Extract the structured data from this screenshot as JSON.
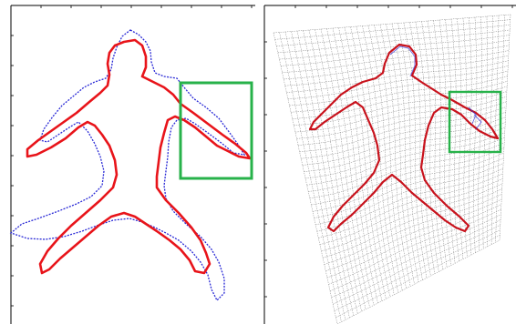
{
  "figure": {
    "panels": [
      {
        "name": "before-registration",
        "shapes": [
          "target-contour",
          "source-contour-dotted"
        ],
        "highlight_box": true
      },
      {
        "name": "after-registration",
        "shapes": [
          "deformation-grid",
          "target-contour",
          "warped-source-contour"
        ],
        "highlight_box": true
      }
    ]
  },
  "colors": {
    "target_contour": "#e8141a",
    "source_contour": "#2a2ad6",
    "highlight_box": "#27b24a",
    "grid": "#7a7a7a",
    "axes": "#000000"
  }
}
